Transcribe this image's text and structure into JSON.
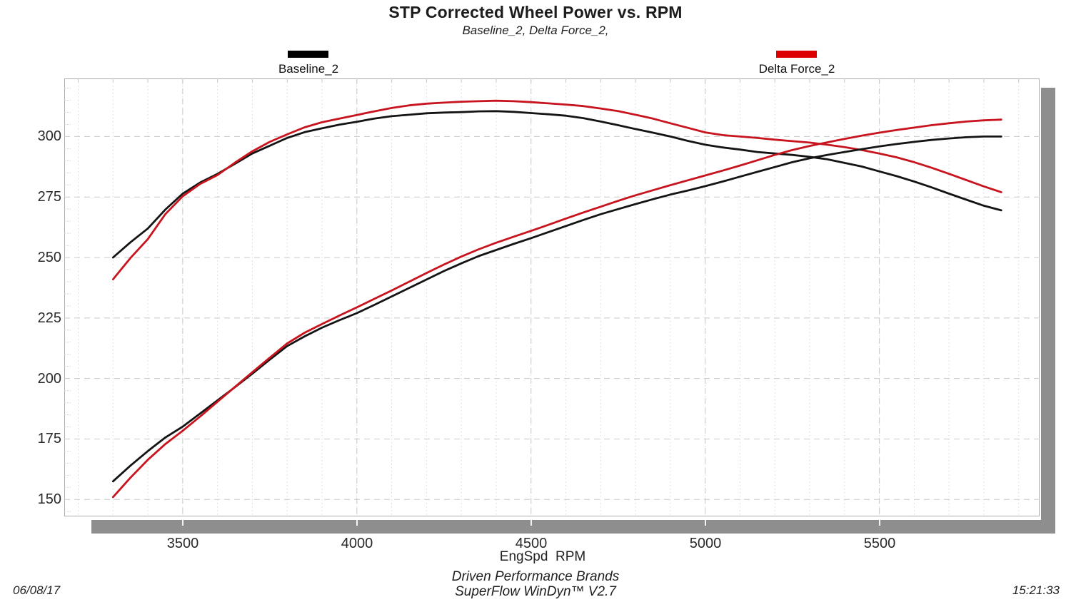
{
  "header": {
    "title": "STP Corrected Wheel Power vs. RPM",
    "subtitle": "Baseline_2, Delta Force_2,"
  },
  "legend": {
    "items": [
      {
        "label": "Baseline_2",
        "color": "#000000"
      },
      {
        "label": "Delta Force_2",
        "color": "#dd0000"
      }
    ]
  },
  "axis": {
    "xlabel": "EngSpd  RPM"
  },
  "footer": {
    "brand": "Driven Performance Brands",
    "software": "SuperFlow WinDyn™ V2.7",
    "date": "06/08/17",
    "time": "15:21:33"
  },
  "chart_data": {
    "type": "line",
    "title": "STP Corrected Wheel Power vs. RPM",
    "subtitle": "Baseline_2, Delta Force_2,",
    "xlabel": "EngSpd  RPM",
    "ylabel": "",
    "xlim": [
      3160,
      5960
    ],
    "ylim": [
      143,
      324
    ],
    "x_ticks": [
      3500,
      4000,
      4500,
      5000,
      5500
    ],
    "y_ticks": [
      150,
      175,
      200,
      225,
      250,
      275,
      300
    ],
    "x_minor_step": 100,
    "y_minor_step": 5,
    "grid": "major dashed gray, minor vertical dotted, legend above plot",
    "colors": {
      "baseline": "#141414",
      "delta_force": "#c8141e",
      "major_grid": "#c8c8c8",
      "minor_grid": "#d8d8d8",
      "shadow": "#8e8e8e"
    },
    "x": [
      3300,
      3350,
      3400,
      3450,
      3500,
      3550,
      3600,
      3650,
      3700,
      3750,
      3800,
      3850,
      3900,
      3950,
      4000,
      4050,
      4100,
      4150,
      4200,
      4250,
      4300,
      4350,
      4400,
      4450,
      4500,
      4550,
      4600,
      4650,
      4700,
      4750,
      4800,
      4850,
      4900,
      4950,
      5000,
      5050,
      5100,
      5150,
      5200,
      5250,
      5300,
      5350,
      5400,
      5450,
      5500,
      5550,
      5600,
      5650,
      5700,
      5750,
      5800,
      5850
    ],
    "series": [
      {
        "name": "Baseline_2 upper curve",
        "color": "#141414",
        "values": [
          250.0,
          256.3,
          262.0,
          269.8,
          276.4,
          281.0,
          284.6,
          288.7,
          293.0,
          296.2,
          299.4,
          301.8,
          303.4,
          304.9,
          306.1,
          307.4,
          308.4,
          309.0,
          309.6,
          309.9,
          310.1,
          310.4,
          310.5,
          310.2,
          309.7,
          309.2,
          308.6,
          307.6,
          306.2,
          304.7,
          303.1,
          301.6,
          300.0,
          298.2,
          296.6,
          295.5,
          294.6,
          293.6,
          293.0,
          292.4,
          291.6,
          290.6,
          289.1,
          287.6,
          285.6,
          283.6,
          281.4,
          279.0,
          276.4,
          273.9,
          271.4,
          269.5
        ]
      },
      {
        "name": "Delta Force_2 upper curve",
        "color": "#c8141e",
        "values": [
          241.0,
          249.8,
          257.6,
          267.9,
          275.3,
          280.4,
          284.1,
          289.2,
          293.9,
          297.8,
          300.9,
          303.8,
          305.9,
          307.4,
          308.9,
          310.4,
          311.8,
          312.9,
          313.6,
          314.0,
          314.4,
          314.6,
          314.8,
          314.6,
          314.2,
          313.7,
          313.2,
          312.6,
          311.6,
          310.5,
          309.0,
          307.4,
          305.5,
          303.6,
          301.7,
          300.6,
          300.0,
          299.4,
          298.7,
          298.1,
          297.5,
          296.6,
          295.6,
          294.4,
          293.0,
          291.4,
          289.4,
          287.1,
          284.6,
          282.0,
          279.4,
          277.0
        ]
      },
      {
        "name": "Baseline_2 lower curve",
        "color": "#141414",
        "values": [
          157.5,
          164.0,
          170.0,
          175.6,
          180.1,
          185.5,
          191.0,
          196.4,
          202.0,
          207.8,
          213.4,
          217.4,
          221.0,
          224.1,
          227.0,
          230.4,
          233.9,
          237.4,
          240.9,
          244.4,
          247.6,
          250.6,
          253.1,
          255.6,
          258.0,
          260.5,
          263.0,
          265.5,
          267.9,
          270.0,
          272.1,
          274.1,
          276.0,
          277.7,
          279.5,
          281.4,
          283.4,
          285.4,
          287.4,
          289.4,
          291.0,
          292.4,
          293.6,
          294.8,
          295.9,
          296.9,
          297.8,
          298.6,
          299.2,
          299.7,
          300.0,
          300.0
        ]
      },
      {
        "name": "Delta Force_2 lower curve",
        "color": "#c8141e",
        "values": [
          151.0,
          159.0,
          166.4,
          172.9,
          178.4,
          184.3,
          190.4,
          196.5,
          202.6,
          208.6,
          214.5,
          218.9,
          222.5,
          226.0,
          229.4,
          232.9,
          236.4,
          240.0,
          243.6,
          247.1,
          250.4,
          253.4,
          256.1,
          258.6,
          261.0,
          263.5,
          266.1,
          268.6,
          271.0,
          273.4,
          275.7,
          277.8,
          279.9,
          281.9,
          283.9,
          285.9,
          288.0,
          290.2,
          292.4,
          294.4,
          296.1,
          297.6,
          299.0,
          300.4,
          301.6,
          302.7,
          303.7,
          304.7,
          305.5,
          306.2,
          306.7,
          307.0
        ]
      }
    ]
  }
}
